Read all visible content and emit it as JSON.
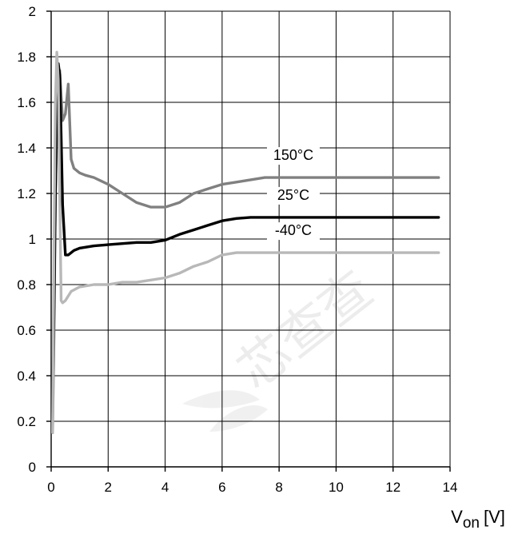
{
  "chart_data": {
    "type": "line",
    "title": "",
    "xlabel_main": "V",
    "xlabel_sub": "on",
    "xlabel_unit": "[V]",
    "ylabel": "",
    "xlim": [
      0,
      14
    ],
    "ylim": [
      0,
      2
    ],
    "x_ticks": [
      "0",
      "2",
      "4",
      "6",
      "8",
      "10",
      "12",
      "14"
    ],
    "y_ticks": [
      "0",
      "0.2",
      "0.4",
      "0.6",
      "0.8",
      "1",
      "1.2",
      "1.4",
      "1.6",
      "1.8",
      "2"
    ],
    "grid": true,
    "legend": "none",
    "watermark": "芯查查",
    "series": [
      {
        "name": "150°C",
        "color": "#808080",
        "x": [
          0.05,
          0.1,
          0.15,
          0.2,
          0.3,
          0.4,
          0.5,
          0.6,
          0.7,
          0.8,
          1.0,
          1.2,
          1.5,
          2.0,
          2.5,
          3.0,
          3.5,
          4.0,
          4.5,
          5.0,
          5.5,
          6.0,
          6.5,
          7.0,
          7.5,
          8.0,
          10.0,
          13.6
        ],
        "y": [
          0.15,
          0.6,
          1.2,
          1.5,
          1.74,
          1.52,
          1.55,
          1.68,
          1.35,
          1.31,
          1.29,
          1.28,
          1.27,
          1.24,
          1.2,
          1.16,
          1.14,
          1.14,
          1.16,
          1.2,
          1.22,
          1.24,
          1.25,
          1.26,
          1.27,
          1.27,
          1.27,
          1.27
        ]
      },
      {
        "name": "25°C",
        "color": "#000000",
        "x": [
          0.05,
          0.1,
          0.15,
          0.2,
          0.25,
          0.3,
          0.35,
          0.4,
          0.5,
          0.6,
          0.8,
          1.0,
          1.5,
          2.0,
          2.5,
          3.0,
          3.5,
          4.0,
          4.5,
          5.0,
          5.5,
          6.0,
          6.5,
          7.0,
          8.0,
          10.0,
          13.6
        ],
        "y": [
          0.28,
          0.7,
          1.2,
          1.55,
          1.77,
          1.72,
          1.45,
          1.15,
          0.93,
          0.93,
          0.95,
          0.96,
          0.97,
          0.975,
          0.98,
          0.985,
          0.985,
          0.995,
          1.02,
          1.04,
          1.06,
          1.08,
          1.09,
          1.095,
          1.095,
          1.095,
          1.095
        ]
      },
      {
        "name": "-40°C",
        "color": "#b8b8b8",
        "x": [
          0.05,
          0.1,
          0.15,
          0.2,
          0.25,
          0.3,
          0.35,
          0.4,
          0.5,
          0.7,
          1.0,
          1.5,
          2.0,
          2.5,
          3.0,
          3.5,
          4.0,
          4.5,
          5.0,
          5.5,
          6.0,
          6.5,
          7.0,
          8.0,
          10.0,
          13.6
        ],
        "y": [
          0.15,
          1.0,
          1.6,
          1.82,
          1.7,
          1.2,
          0.73,
          0.72,
          0.73,
          0.77,
          0.79,
          0.8,
          0.8,
          0.81,
          0.81,
          0.82,
          0.83,
          0.85,
          0.88,
          0.9,
          0.93,
          0.94,
          0.94,
          0.94,
          0.94,
          0.94
        ]
      }
    ]
  }
}
